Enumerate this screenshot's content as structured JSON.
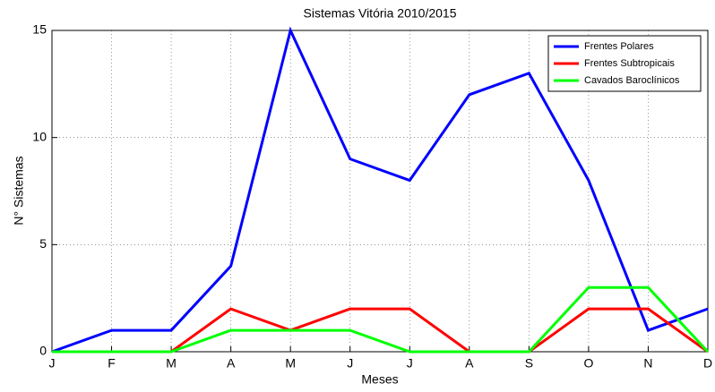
{
  "chart_data": {
    "type": "line",
    "title": "Sistemas Vitória 2010/2015",
    "xlabel": "Meses",
    "ylabel": "N° Sistemas",
    "categories": [
      "J",
      "F",
      "M",
      "A",
      "M",
      "J",
      "J",
      "A",
      "S",
      "O",
      "N",
      "D"
    ],
    "series": [
      {
        "name": "Frentes Polares",
        "color": "#0000ff",
        "values": [
          0,
          1,
          1,
          4,
          15,
          9,
          8,
          12,
          13,
          8,
          1,
          2
        ]
      },
      {
        "name": "Frentes Subtropicais",
        "color": "#ff0000",
        "values": [
          0,
          0,
          0,
          2,
          1,
          2,
          2,
          0,
          0,
          2,
          2,
          0
        ]
      },
      {
        "name": "Cavados Baroclínicos",
        "color": "#00ff00",
        "values": [
          0,
          0,
          0,
          1,
          1,
          1,
          0,
          0,
          0,
          3,
          3,
          0
        ]
      }
    ],
    "ylim": [
      0,
      15
    ],
    "yticks": [
      0,
      5,
      10,
      15
    ],
    "grid": true,
    "legend": "northeast"
  }
}
